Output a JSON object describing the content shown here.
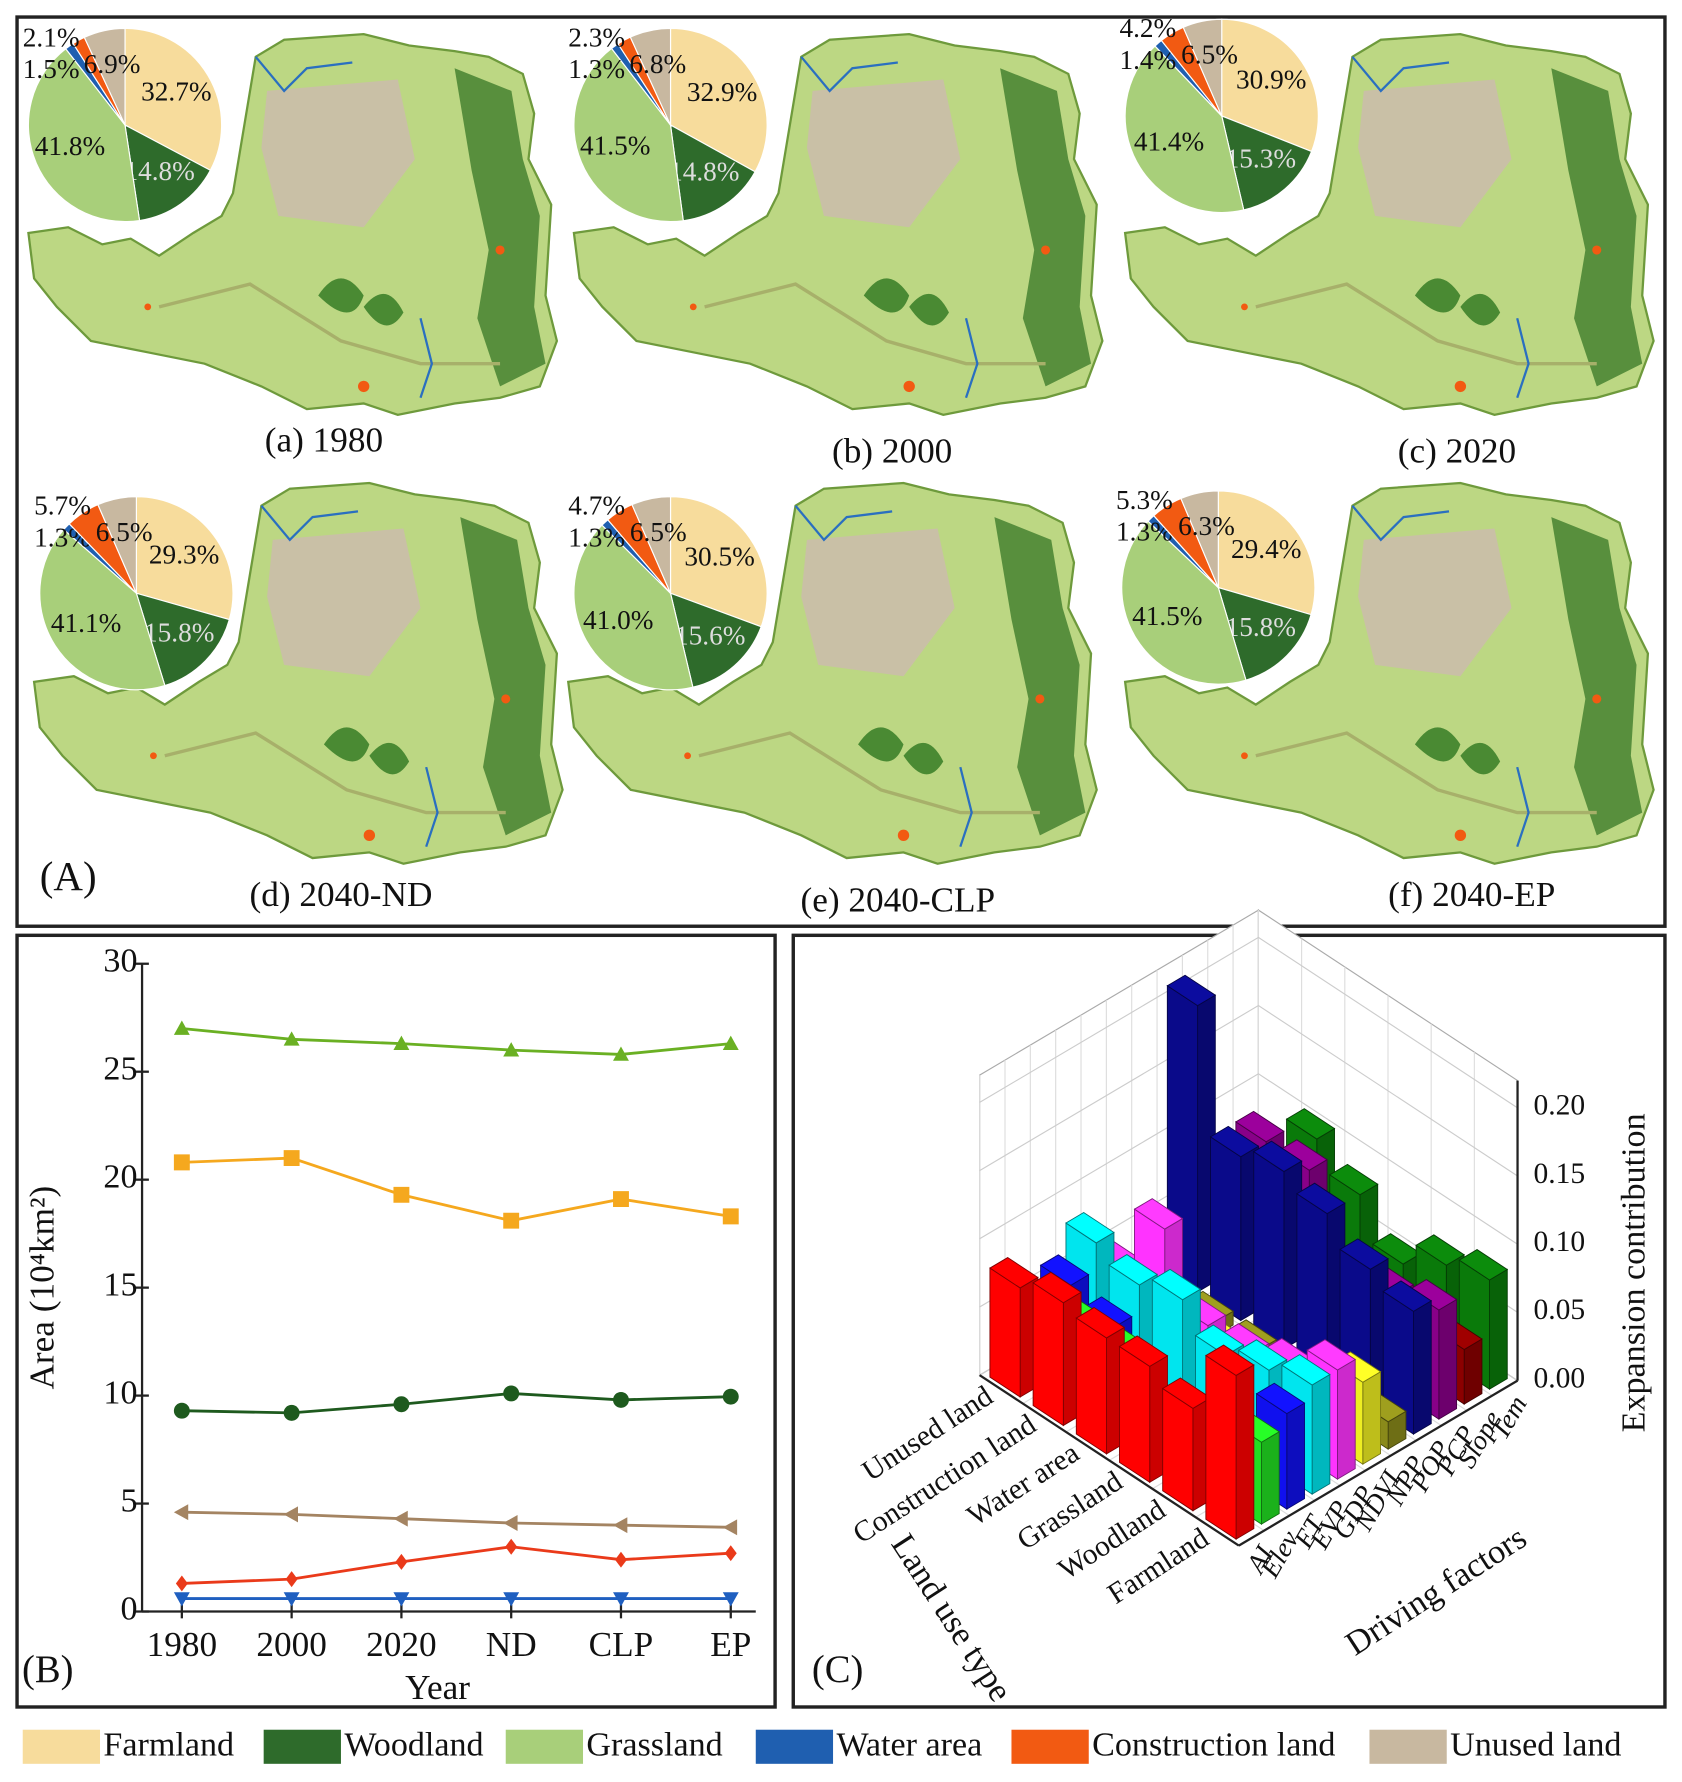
{
  "panel_labels": [
    "(A)",
    "(B)",
    "(C)"
  ],
  "chart_data": [
    {
      "type": "pie",
      "title": "(a) 1980",
      "categories": [
        "Farmland",
        "Woodland",
        "Grassland",
        "Water area",
        "Construction land",
        "Unused land"
      ],
      "values": [
        32.7,
        14.8,
        41.8,
        1.5,
        2.1,
        6.9
      ],
      "value_labels": [
        "32.7%",
        "14.8%",
        "41.8%",
        "1.5%",
        "2.1%",
        "6.9%"
      ],
      "colors": [
        "#f7dc9c",
        "#2e6b2b",
        "#a8cf7a",
        "#1f5fb0",
        "#f25a12",
        "#c8b8a0"
      ]
    },
    {
      "type": "pie",
      "title": "(b) 2000",
      "categories": [
        "Farmland",
        "Woodland",
        "Grassland",
        "Water area",
        "Construction land",
        "Unused land"
      ],
      "values": [
        32.9,
        14.8,
        41.5,
        1.3,
        2.3,
        6.8
      ],
      "value_labels": [
        "32.9%",
        "14.8%",
        "41.5%",
        "1.3%",
        "2.3%",
        "6.8%"
      ],
      "colors": [
        "#f7dc9c",
        "#2e6b2b",
        "#a8cf7a",
        "#1f5fb0",
        "#f25a12",
        "#c8b8a0"
      ]
    },
    {
      "type": "pie",
      "title": "(c) 2020",
      "categories": [
        "Farmland",
        "Woodland",
        "Grassland",
        "Water area",
        "Construction land",
        "Unused land"
      ],
      "values": [
        30.9,
        15.3,
        41.4,
        1.4,
        4.2,
        6.5
      ],
      "value_labels": [
        "30.9%",
        "15.3%",
        "41.4%",
        "1.4%",
        "4.2%",
        "6.5%"
      ],
      "colors": [
        "#f7dc9c",
        "#2e6b2b",
        "#a8cf7a",
        "#1f5fb0",
        "#f25a12",
        "#c8b8a0"
      ]
    },
    {
      "type": "pie",
      "title": "(d) 2040-ND",
      "categories": [
        "Farmland",
        "Woodland",
        "Grassland",
        "Water area",
        "Construction land",
        "Unused land"
      ],
      "values": [
        29.3,
        15.8,
        41.1,
        1.3,
        5.7,
        6.5
      ],
      "value_labels": [
        "29.3%",
        "15.8%",
        "41.1%",
        "1.3%",
        "5.7%",
        "6.5%"
      ],
      "colors": [
        "#f7dc9c",
        "#2e6b2b",
        "#a8cf7a",
        "#1f5fb0",
        "#f25a12",
        "#c8b8a0"
      ]
    },
    {
      "type": "pie",
      "title": "(e) 2040-CLP",
      "categories": [
        "Farmland",
        "Woodland",
        "Grassland",
        "Water area",
        "Construction land",
        "Unused land"
      ],
      "values": [
        30.5,
        15.6,
        41.0,
        1.3,
        4.7,
        6.5
      ],
      "value_labels": [
        "30.5%",
        "15.6%",
        "41.0%",
        "1.3%",
        "4.7%",
        "6.5%"
      ],
      "colors": [
        "#f7dc9c",
        "#2e6b2b",
        "#a8cf7a",
        "#1f5fb0",
        "#f25a12",
        "#c8b8a0"
      ]
    },
    {
      "type": "pie",
      "title": "(f) 2040-EP",
      "categories": [
        "Farmland",
        "Woodland",
        "Grassland",
        "Water area",
        "Construction land",
        "Unused land"
      ],
      "values": [
        29.4,
        15.8,
        41.5,
        1.3,
        5.3,
        6.3
      ],
      "value_labels": [
        "29.4%",
        "15.8%",
        "41.5%",
        "1.3%",
        "5.3%",
        "6.3%"
      ],
      "colors": [
        "#f7dc9c",
        "#2e6b2b",
        "#a8cf7a",
        "#1f5fb0",
        "#f25a12",
        "#c8b8a0"
      ]
    },
    {
      "type": "line",
      "xlabel": "Year",
      "ylabel": "Area (10⁴km²)",
      "categories": [
        "1980",
        "2000",
        "2020",
        "ND",
        "CLP",
        "EP"
      ],
      "ylim": [
        0,
        30
      ],
      "yticks": [
        0,
        5,
        10,
        15,
        20,
        25,
        30
      ],
      "series": [
        {
          "name": "Grassland",
          "color": "#6ab023",
          "marker": "triangle-up",
          "values": [
            27.0,
            26.5,
            26.3,
            26.0,
            25.8,
            26.3
          ]
        },
        {
          "name": "Farmland",
          "color": "#f5a81e",
          "marker": "square",
          "values": [
            20.8,
            21.0,
            19.3,
            18.1,
            19.1,
            18.3
          ]
        },
        {
          "name": "Woodland",
          "color": "#1e5a1e",
          "marker": "circle",
          "values": [
            9.3,
            9.2,
            9.6,
            10.1,
            9.8,
            9.95
          ]
        },
        {
          "name": "Unused land",
          "color": "#a48462",
          "marker": "triangle-left",
          "values": [
            4.6,
            4.5,
            4.3,
            4.1,
            4.0,
            3.9
          ]
        },
        {
          "name": "Construction land",
          "color": "#ea3a1a",
          "marker": "diamond",
          "values": [
            1.3,
            1.5,
            2.3,
            3.0,
            2.4,
            2.7
          ]
        },
        {
          "name": "Water area",
          "color": "#1f5fc0",
          "marker": "triangle-down",
          "values": [
            0.6,
            0.6,
            0.6,
            0.6,
            0.6,
            0.6
          ]
        }
      ]
    },
    {
      "type": "bar3d",
      "xlabel": "Land use type",
      "ylabel": "Driving factors",
      "zlabel": "Expansion contribution",
      "x_categories": [
        "Farmland",
        "Woodland",
        "Grassland",
        "Water area",
        "Construction land",
        "Unused land"
      ],
      "y_categories": [
        "AI",
        "Elev",
        "ET",
        "EVP",
        "GDP",
        "NDVI",
        "NPP",
        "POP",
        "PCP",
        "Slope",
        "Tem"
      ],
      "colors": [
        "#ff0000",
        "#22dd22",
        "#1010ee",
        "#00e5ee",
        "#ff33ff",
        "#eeee22",
        "#8a8a1a",
        "#0a0a8a",
        "#880088",
        "#8b0000",
        "#0a7a0a"
      ],
      "zlim": [
        0,
        0.22
      ],
      "zticks": [
        {
          "value": 0,
          "label": "0.00"
        },
        0.05,
        {
          "value": 0.1,
          "label": "0.10"
        },
        0.15,
        {
          "value": 0.2,
          "label": "0.20"
        }
      ],
      "values": [
        [
          0.12,
          0.06,
          0.07,
          0.08,
          0.08,
          0.06,
          0.02,
          0.09,
          0.08,
          0.04,
          0.08
        ],
        [
          0.075,
          0.01,
          0.01,
          0.07,
          0.06,
          0.01,
          0.01,
          0.1,
          0.07,
          0.03,
          0.07
        ],
        [
          0.085,
          0.01,
          0.01,
          0.06,
          0.05,
          0.01,
          0.01,
          0.12,
          0.04,
          0.02,
          0.05
        ],
        [
          0.085,
          0.06,
          0.01,
          0.08,
          0.05,
          0.02,
          0.01,
          0.13,
          0.12,
          0.02,
          0.08
        ],
        [
          0.09,
          0.06,
          0.05,
          0.07,
          0.1,
          0.02,
          0.01,
          0.12,
          0.12,
          0.02,
          0.1
        ],
        [
          0.08,
          0.05,
          0.06,
          0.08,
          0.05,
          0.01,
          0.01,
          0.21,
          0.01,
          0.01,
          0.01
        ]
      ]
    }
  ]
}
